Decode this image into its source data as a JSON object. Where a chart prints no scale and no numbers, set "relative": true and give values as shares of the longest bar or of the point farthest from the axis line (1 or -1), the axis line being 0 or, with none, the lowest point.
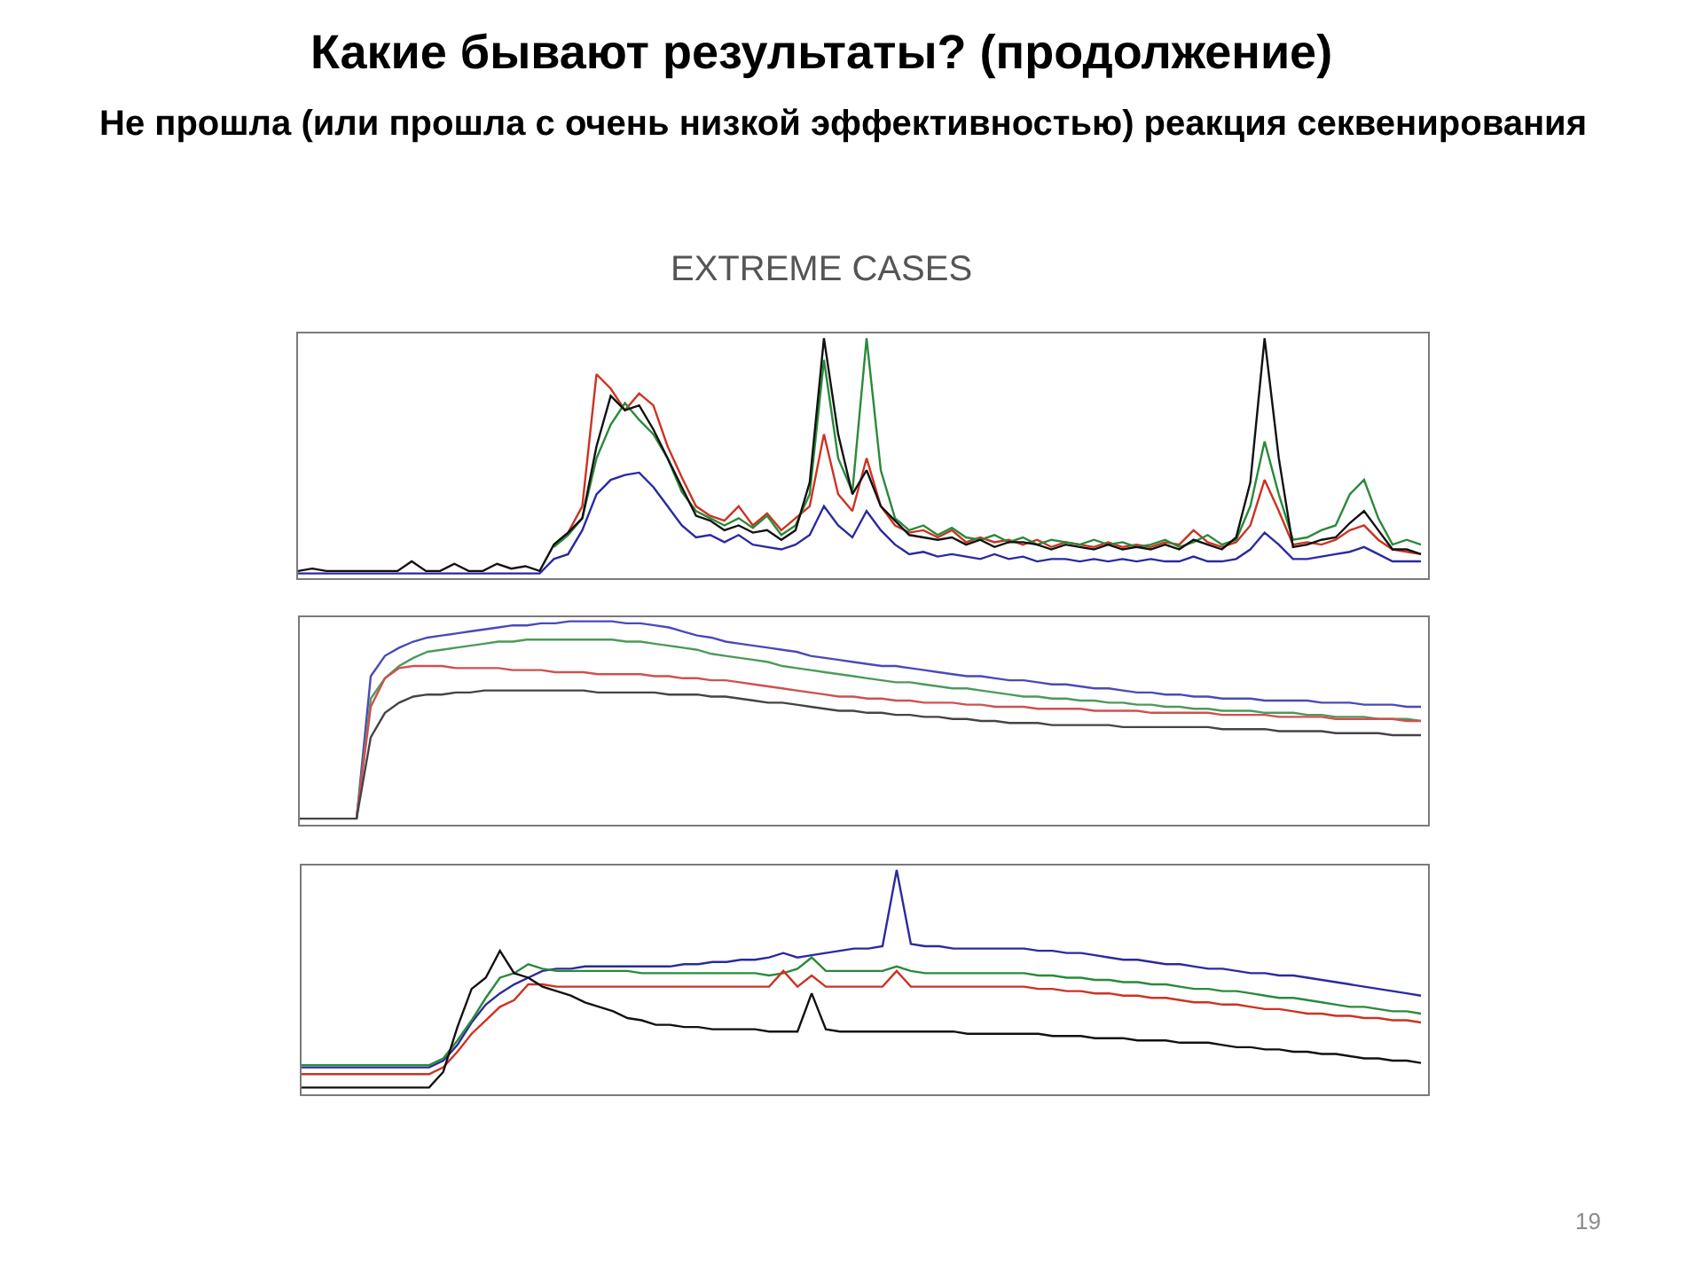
{
  "chart_data": [
    {
      "type": "line",
      "title": "Какие бывают результаты? (продолжение)",
      "subtitle": "Не прошла (или прошла с очень низкой эффективностью) реакция секвенирования",
      "annotations": [
        "EXTREME CASES",
        "19"
      ],
      "relative": true,
      "categories": [
        null,
        null,
        null,
        null,
        null,
        null,
        null,
        null,
        null,
        null,
        null,
        null,
        null,
        null,
        null,
        null,
        null,
        null,
        null,
        null,
        null,
        null,
        null,
        null,
        null,
        null,
        null,
        null,
        null,
        null,
        null,
        null,
        null,
        null,
        null,
        null,
        null,
        null,
        null,
        null,
        null,
        null,
        null,
        null,
        null,
        null,
        null,
        null,
        null,
        null,
        null,
        null,
        null,
        null,
        null,
        null,
        null,
        null,
        null,
        null,
        null,
        null,
        null,
        null,
        null,
        null,
        null,
        null,
        null,
        null,
        null,
        null,
        null,
        null,
        null,
        null,
        null,
        null,
        null,
        null
      ],
      "series": [
        {
          "color": "#2a2aa0",
          "values": [
            0.02,
            0.02,
            0.02,
            0.02,
            0.02,
            0.02,
            0.02,
            0.02,
            0.02,
            0.02,
            0.02,
            0.02,
            0.02,
            0.02,
            0.02,
            0.02,
            0.02,
            0.02,
            0.08,
            0.1,
            0.2,
            0.35,
            0.41,
            0.43,
            0.44,
            0.38,
            0.3,
            0.22,
            0.17,
            0.18,
            0.15,
            0.18,
            0.14,
            0.13,
            0.12,
            0.14,
            0.18,
            0.3,
            0.22,
            0.17,
            0.28,
            0.2,
            0.14,
            0.1,
            0.11,
            0.09,
            0.1,
            0.09,
            0.08,
            0.1,
            0.08,
            0.09,
            0.07,
            0.08,
            0.08,
            0.07,
            0.08,
            0.07,
            0.08,
            0.07,
            0.08,
            0.07,
            0.07,
            0.09,
            0.07,
            0.07,
            0.08,
            0.12,
            0.19,
            0.14,
            0.08,
            0.08,
            0.09,
            0.1,
            0.11,
            0.13,
            0.1,
            0.07,
            0.07,
            0.07
          ]
        },
        {
          "color": "#cc3322",
          "values": [
            null,
            null,
            null,
            null,
            null,
            null,
            null,
            null,
            null,
            null,
            null,
            null,
            null,
            null,
            null,
            null,
            null,
            null,
            0.14,
            0.19,
            0.3,
            0.85,
            0.79,
            0.7,
            0.77,
            0.72,
            0.55,
            0.42,
            0.3,
            0.26,
            0.24,
            0.3,
            0.22,
            0.27,
            0.2,
            0.25,
            0.3,
            0.6,
            0.35,
            0.28,
            0.5,
            0.3,
            0.22,
            0.19,
            0.2,
            0.17,
            0.2,
            0.15,
            0.17,
            0.15,
            0.16,
            0.14,
            0.16,
            0.13,
            0.15,
            0.14,
            0.13,
            0.15,
            0.13,
            0.14,
            0.13,
            0.15,
            0.14,
            0.2,
            0.15,
            0.13,
            0.15,
            0.22,
            0.41,
            0.28,
            0.14,
            0.15,
            0.14,
            0.16,
            0.2,
            0.22,
            0.16,
            0.12,
            0.11,
            0.1
          ]
        },
        {
          "color": "#2a8a3a",
          "values": [
            null,
            null,
            null,
            null,
            null,
            null,
            null,
            null,
            null,
            null,
            null,
            null,
            null,
            null,
            null,
            null,
            null,
            null,
            0.13,
            0.18,
            0.25,
            0.5,
            0.64,
            0.73,
            0.66,
            0.6,
            0.5,
            0.36,
            0.28,
            0.25,
            0.22,
            0.25,
            0.21,
            0.26,
            0.18,
            0.22,
            0.35,
            0.91,
            0.5,
            0.36,
            1.0,
            0.45,
            0.25,
            0.2,
            0.22,
            0.18,
            0.21,
            0.17,
            0.16,
            0.18,
            0.15,
            0.17,
            0.14,
            0.16,
            0.15,
            0.14,
            0.16,
            0.14,
            0.15,
            0.13,
            0.14,
            0.16,
            0.13,
            0.15,
            0.18,
            0.14,
            0.16,
            0.3,
            0.57,
            0.35,
            0.16,
            0.17,
            0.2,
            0.22,
            0.35,
            0.41,
            0.25,
            0.14,
            0.16,
            0.14
          ]
        },
        {
          "color": "#111111",
          "values": [
            0.03,
            0.04,
            0.03,
            0.03,
            0.03,
            0.03,
            0.03,
            0.03,
            0.07,
            0.03,
            0.03,
            0.06,
            0.03,
            0.03,
            0.06,
            0.04,
            0.05,
            0.03,
            0.14,
            0.19,
            0.25,
            0.55,
            0.76,
            0.7,
            0.72,
            0.62,
            0.5,
            0.38,
            0.26,
            0.24,
            0.2,
            0.22,
            0.19,
            0.2,
            0.16,
            0.2,
            0.4,
            1.0,
            0.6,
            0.35,
            0.45,
            0.3,
            0.24,
            0.18,
            0.17,
            0.16,
            0.17,
            0.14,
            0.16,
            0.13,
            0.15,
            0.15,
            0.14,
            0.12,
            0.14,
            0.13,
            0.12,
            0.14,
            0.12,
            0.13,
            0.12,
            0.14,
            0.12,
            0.16,
            0.14,
            0.12,
            0.17,
            0.4,
            1.0,
            0.5,
            0.13,
            0.14,
            0.16,
            0.17,
            0.23,
            0.28,
            0.2,
            0.12,
            0.12,
            0.1
          ]
        }
      ]
    },
    {
      "type": "line",
      "relative": true,
      "categories": [
        null,
        null,
        null,
        null,
        null,
        null,
        null,
        null,
        null,
        null,
        null,
        null,
        null,
        null,
        null,
        null,
        null,
        null,
        null,
        null,
        null,
        null,
        null,
        null,
        null,
        null,
        null,
        null,
        null,
        null,
        null,
        null,
        null,
        null,
        null,
        null,
        null,
        null,
        null,
        null,
        null,
        null,
        null,
        null,
        null,
        null,
        null,
        null,
        null,
        null,
        null,
        null,
        null,
        null,
        null,
        null,
        null,
        null,
        null,
        null,
        null,
        null,
        null,
        null,
        null,
        null,
        null,
        null,
        null,
        null,
        null,
        null,
        null,
        null,
        null,
        null,
        null,
        null,
        null,
        null
      ],
      "series": [
        {
          "color": "#4a4ab8",
          "values": [
            null,
            null,
            null,
            null,
            0.03,
            0.73,
            0.83,
            0.87,
            0.9,
            0.92,
            0.93,
            0.94,
            0.95,
            0.96,
            0.97,
            0.98,
            0.98,
            0.99,
            0.99,
            1.0,
            1.0,
            1.0,
            1.0,
            0.99,
            0.99,
            0.98,
            0.97,
            0.95,
            0.93,
            0.92,
            0.9,
            0.89,
            0.88,
            0.87,
            0.86,
            0.85,
            0.83,
            0.82,
            0.81,
            0.8,
            0.79,
            0.78,
            0.78,
            0.77,
            0.76,
            0.75,
            0.74,
            0.73,
            0.73,
            0.72,
            0.71,
            0.71,
            0.7,
            0.69,
            0.69,
            0.68,
            0.67,
            0.67,
            0.66,
            0.65,
            0.65,
            0.64,
            0.64,
            0.63,
            0.63,
            0.62,
            0.62,
            0.62,
            0.61,
            0.61,
            0.61,
            0.61,
            0.6,
            0.6,
            0.6,
            0.59,
            0.59,
            0.59,
            0.58,
            0.58
          ]
        },
        {
          "color": "#4c9a5a",
          "values": [
            null,
            null,
            null,
            null,
            0.03,
            0.62,
            0.72,
            0.78,
            0.82,
            0.85,
            0.86,
            0.87,
            0.88,
            0.89,
            0.9,
            0.9,
            0.91,
            0.91,
            0.91,
            0.91,
            0.91,
            0.91,
            0.91,
            0.9,
            0.9,
            0.89,
            0.88,
            0.87,
            0.86,
            0.84,
            0.83,
            0.82,
            0.81,
            0.8,
            0.78,
            0.77,
            0.76,
            0.75,
            0.74,
            0.73,
            0.72,
            0.71,
            0.7,
            0.7,
            0.69,
            0.68,
            0.67,
            0.67,
            0.66,
            0.65,
            0.64,
            0.63,
            0.63,
            0.62,
            0.62,
            0.61,
            0.61,
            0.6,
            0.6,
            0.59,
            0.59,
            0.58,
            0.58,
            0.57,
            0.57,
            0.56,
            0.56,
            0.56,
            0.55,
            0.55,
            0.55,
            0.54,
            0.54,
            0.53,
            0.53,
            0.53,
            0.52,
            0.52,
            0.52,
            0.51
          ]
        },
        {
          "color": "#d05050",
          "values": [
            null,
            null,
            null,
            null,
            0.03,
            0.58,
            0.72,
            0.77,
            0.78,
            0.78,
            0.78,
            0.77,
            0.77,
            0.77,
            0.77,
            0.76,
            0.76,
            0.76,
            0.75,
            0.75,
            0.75,
            0.74,
            0.74,
            0.74,
            0.74,
            0.73,
            0.73,
            0.72,
            0.72,
            0.71,
            0.71,
            0.7,
            0.69,
            0.68,
            0.67,
            0.66,
            0.65,
            0.64,
            0.63,
            0.63,
            0.62,
            0.62,
            0.61,
            0.61,
            0.6,
            0.6,
            0.6,
            0.59,
            0.59,
            0.58,
            0.58,
            0.58,
            0.57,
            0.57,
            0.57,
            0.57,
            0.56,
            0.56,
            0.56,
            0.56,
            0.55,
            0.55,
            0.55,
            0.55,
            0.55,
            0.54,
            0.54,
            0.54,
            0.54,
            0.53,
            0.53,
            0.53,
            0.53,
            0.52,
            0.52,
            0.52,
            0.52,
            0.52,
            0.51,
            0.51
          ]
        },
        {
          "color": "#444444",
          "values": [
            0.03,
            0.03,
            0.03,
            0.03,
            0.03,
            0.43,
            0.55,
            0.6,
            0.63,
            0.64,
            0.64,
            0.65,
            0.65,
            0.66,
            0.66,
            0.66,
            0.66,
            0.66,
            0.66,
            0.66,
            0.66,
            0.65,
            0.65,
            0.65,
            0.65,
            0.65,
            0.64,
            0.64,
            0.64,
            0.63,
            0.63,
            0.62,
            0.61,
            0.6,
            0.6,
            0.59,
            0.58,
            0.57,
            0.56,
            0.56,
            0.55,
            0.55,
            0.54,
            0.54,
            0.53,
            0.53,
            0.52,
            0.52,
            0.51,
            0.51,
            0.5,
            0.5,
            0.5,
            0.49,
            0.49,
            0.49,
            0.49,
            0.49,
            0.48,
            0.48,
            0.48,
            0.48,
            0.48,
            0.48,
            0.48,
            0.47,
            0.47,
            0.47,
            0.47,
            0.46,
            0.46,
            0.46,
            0.46,
            0.45,
            0.45,
            0.45,
            0.45,
            0.44,
            0.44,
            0.44
          ]
        }
      ]
    },
    {
      "type": "line",
      "relative": true,
      "categories": [
        null,
        null,
        null,
        null,
        null,
        null,
        null,
        null,
        null,
        null,
        null,
        null,
        null,
        null,
        null,
        null,
        null,
        null,
        null,
        null,
        null,
        null,
        null,
        null,
        null,
        null,
        null,
        null,
        null,
        null,
        null,
        null,
        null,
        null,
        null,
        null,
        null,
        null,
        null,
        null,
        null,
        null,
        null,
        null,
        null,
        null,
        null,
        null,
        null,
        null,
        null,
        null,
        null,
        null,
        null,
        null,
        null,
        null,
        null,
        null,
        null,
        null,
        null,
        null,
        null,
        null,
        null,
        null,
        null,
        null,
        null,
        null,
        null,
        null,
        null,
        null,
        null,
        null,
        null,
        null
      ],
      "series": [
        {
          "color": "#2a2aa0",
          "values": [
            0.12,
            0.12,
            0.12,
            0.12,
            0.12,
            0.12,
            0.12,
            0.12,
            0.12,
            0.12,
            0.15,
            0.22,
            0.32,
            0.4,
            0.45,
            0.49,
            0.52,
            0.55,
            0.56,
            0.56,
            0.57,
            0.57,
            0.57,
            0.57,
            0.57,
            0.57,
            0.57,
            0.58,
            0.58,
            0.59,
            0.59,
            0.6,
            0.6,
            0.61,
            0.63,
            0.61,
            0.62,
            0.63,
            0.64,
            0.65,
            0.65,
            0.66,
            1.0,
            0.67,
            0.66,
            0.66,
            0.65,
            0.65,
            0.65,
            0.65,
            0.65,
            0.65,
            0.64,
            0.64,
            0.63,
            0.63,
            0.62,
            0.61,
            0.6,
            0.6,
            0.59,
            0.58,
            0.58,
            0.57,
            0.56,
            0.56,
            0.55,
            0.54,
            0.54,
            0.53,
            0.53,
            0.52,
            0.51,
            0.5,
            0.49,
            0.48,
            0.47,
            0.46,
            0.45,
            0.44
          ]
        },
        {
          "color": "#2a8a3a",
          "values": [
            0.13,
            0.13,
            0.13,
            0.13,
            0.13,
            0.13,
            0.13,
            0.13,
            0.13,
            0.13,
            0.16,
            0.24,
            0.33,
            0.43,
            0.52,
            0.54,
            0.58,
            0.56,
            0.55,
            0.55,
            0.55,
            0.55,
            0.55,
            0.55,
            0.54,
            0.54,
            0.54,
            0.54,
            0.54,
            0.54,
            0.54,
            0.54,
            0.54,
            0.53,
            0.54,
            0.56,
            0.61,
            0.55,
            0.55,
            0.55,
            0.55,
            0.55,
            0.57,
            0.55,
            0.54,
            0.54,
            0.54,
            0.54,
            0.54,
            0.54,
            0.54,
            0.54,
            0.53,
            0.53,
            0.52,
            0.52,
            0.51,
            0.51,
            0.5,
            0.5,
            0.49,
            0.49,
            0.48,
            0.47,
            0.47,
            0.46,
            0.46,
            0.45,
            0.44,
            0.43,
            0.43,
            0.42,
            0.41,
            0.4,
            0.39,
            0.39,
            0.38,
            0.37,
            0.37,
            0.36
          ]
        },
        {
          "color": "#cc3322",
          "values": [
            0.09,
            0.09,
            0.09,
            0.09,
            0.09,
            0.09,
            0.09,
            0.09,
            0.09,
            0.09,
            0.12,
            0.19,
            0.27,
            0.33,
            0.39,
            0.42,
            0.49,
            0.49,
            0.48,
            0.48,
            0.48,
            0.48,
            0.48,
            0.48,
            0.48,
            0.48,
            0.48,
            0.48,
            0.48,
            0.48,
            0.48,
            0.48,
            0.48,
            0.48,
            0.55,
            0.48,
            0.53,
            0.48,
            0.48,
            0.48,
            0.48,
            0.48,
            0.55,
            0.48,
            0.48,
            0.48,
            0.48,
            0.48,
            0.48,
            0.48,
            0.48,
            0.48,
            0.47,
            0.47,
            0.46,
            0.46,
            0.45,
            0.45,
            0.44,
            0.44,
            0.43,
            0.43,
            0.42,
            0.41,
            0.41,
            0.4,
            0.4,
            0.39,
            0.38,
            0.38,
            0.37,
            0.36,
            0.36,
            0.35,
            0.35,
            0.34,
            0.34,
            0.33,
            0.33,
            0.32
          ]
        },
        {
          "color": "#111111",
          "values": [
            0.03,
            0.03,
            0.03,
            0.03,
            0.03,
            0.03,
            0.03,
            0.03,
            0.03,
            0.03,
            0.1,
            0.3,
            0.47,
            0.52,
            0.64,
            0.54,
            0.52,
            0.48,
            0.46,
            0.44,
            0.41,
            0.39,
            0.37,
            0.34,
            0.33,
            0.31,
            0.31,
            0.3,
            0.3,
            0.29,
            0.29,
            0.29,
            0.29,
            0.28,
            0.28,
            0.28,
            0.45,
            0.29,
            0.28,
            0.28,
            0.28,
            0.28,
            0.28,
            0.28,
            0.28,
            0.28,
            0.28,
            0.27,
            0.27,
            0.27,
            0.27,
            0.27,
            0.27,
            0.26,
            0.26,
            0.26,
            0.25,
            0.25,
            0.25,
            0.24,
            0.24,
            0.24,
            0.23,
            0.23,
            0.23,
            0.22,
            0.21,
            0.21,
            0.2,
            0.2,
            0.19,
            0.19,
            0.18,
            0.18,
            0.17,
            0.16,
            0.16,
            0.15,
            0.15,
            0.14
          ]
        }
      ]
    }
  ]
}
